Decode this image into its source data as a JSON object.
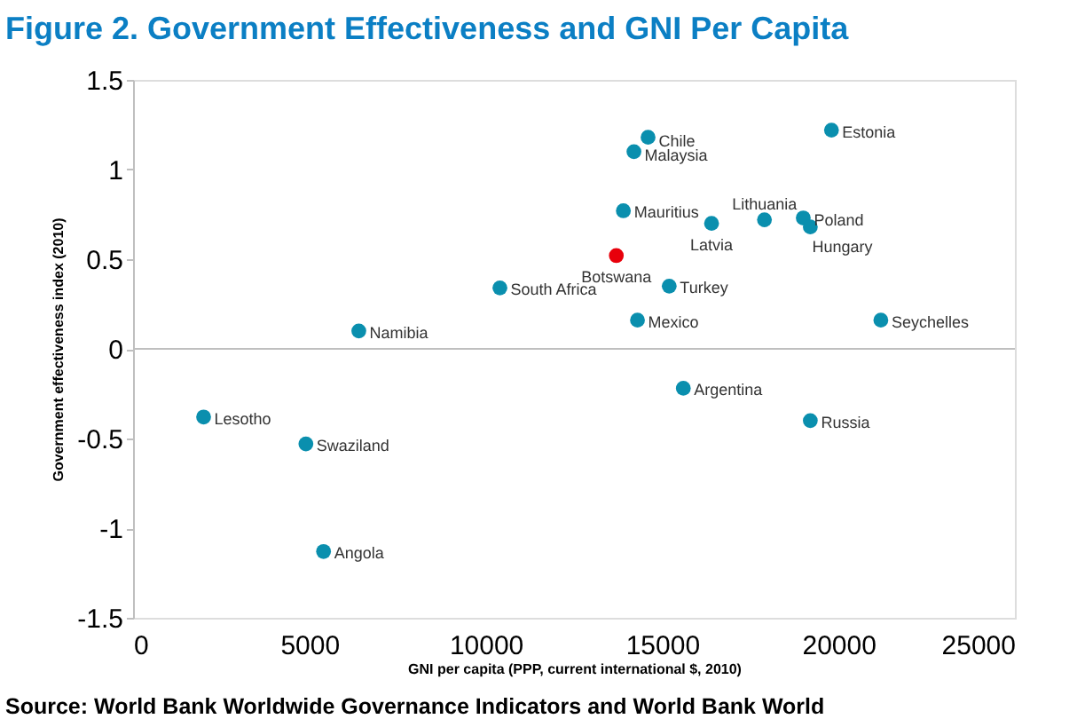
{
  "chart_data": {
    "type": "scatter",
    "title": "Figure 2. Government Effectiveness and GNI Per Capita",
    "xlabel": "GNI per capita (PPP, current international $, 2010)",
    "ylabel": "Government effectiveness index (2010)",
    "annotations": [
      "Source: World Bank Worldwide Governance Indicators and World Bank World"
    ],
    "xlim": [
      0,
      25000
    ],
    "xticks": [
      0,
      5000,
      10000,
      15000,
      20000,
      25000
    ],
    "ylim": [
      -1.5,
      1.5
    ],
    "yticks": [
      -1.5,
      -1,
      -0.5,
      0,
      0.5,
      1,
      1.5
    ],
    "grid": false,
    "legend": false,
    "marker": "circle",
    "ref_lines": [
      {
        "axis": "y",
        "value": 0,
        "color": "#bfbfbf"
      }
    ],
    "series": [
      {
        "name": "Chile",
        "color": "#0a8fae",
        "x": [
          14600
        ],
        "values": [
          1.18
        ]
      },
      {
        "name": "Malaysia",
        "color": "#0a8fae",
        "x": [
          14200
        ],
        "values": [
          1.1
        ]
      },
      {
        "name": "Estonia",
        "color": "#0a8fae",
        "x": [
          19800
        ],
        "values": [
          1.22
        ]
      },
      {
        "name": "Mauritius",
        "color": "#0a8fae",
        "x": [
          13900
        ],
        "values": [
          0.77
        ]
      },
      {
        "name": "Latvia",
        "color": "#0a8fae",
        "x": [
          16400
        ],
        "values": [
          0.7
        ]
      },
      {
        "name": "Lithuania",
        "color": "#0a8fae",
        "x": [
          17900
        ],
        "values": [
          0.72
        ]
      },
      {
        "name": "Poland",
        "color": "#0a8fae",
        "x": [
          19000
        ],
        "values": [
          0.73
        ]
      },
      {
        "name": "Hungary",
        "color": "#0a8fae",
        "x": [
          19200
        ],
        "values": [
          0.68
        ]
      },
      {
        "name": "Botswana",
        "color": "#e8000b",
        "x": [
          13700
        ],
        "values": [
          0.52
        ]
      },
      {
        "name": "Turkey",
        "color": "#0a8fae",
        "x": [
          15200
        ],
        "values": [
          0.35
        ]
      },
      {
        "name": "Mexico",
        "color": "#0a8fae",
        "x": [
          14300
        ],
        "values": [
          0.16
        ]
      },
      {
        "name": "Seychelles",
        "color": "#0a8fae",
        "x": [
          21200
        ],
        "values": [
          0.16
        ]
      },
      {
        "name": "South Africa",
        "color": "#0a8fae",
        "x": [
          10400
        ],
        "values": [
          0.34
        ]
      },
      {
        "name": "Namibia",
        "color": "#0a8fae",
        "x": [
          6400
        ],
        "values": [
          0.1
        ]
      },
      {
        "name": "Argentina",
        "color": "#0a8fae",
        "x": [
          15600
        ],
        "values": [
          -0.22
        ]
      },
      {
        "name": "Russia",
        "color": "#0a8fae",
        "x": [
          19200
        ],
        "values": [
          -0.4
        ]
      },
      {
        "name": "Lesotho",
        "color": "#0a8fae",
        "x": [
          2000
        ],
        "values": [
          -0.38
        ]
      },
      {
        "name": "Swaziland",
        "color": "#0a8fae",
        "x": [
          4900
        ],
        "values": [
          -0.53
        ]
      },
      {
        "name": "Angola",
        "color": "#0a8fae",
        "x": [
          5400
        ],
        "values": [
          -1.13
        ]
      }
    ]
  }
}
